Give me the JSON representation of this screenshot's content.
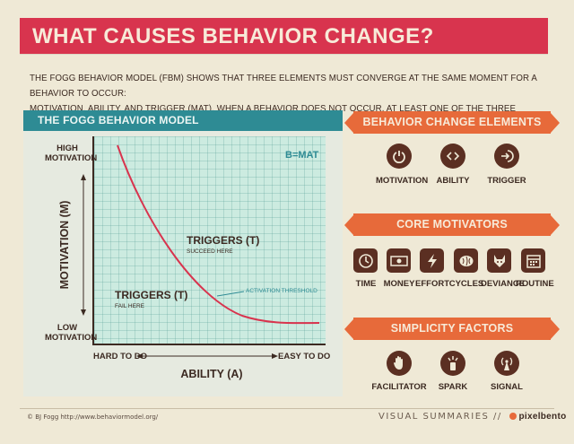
{
  "title": "WHAT CAUSES BEHAVIOR CHANGE?",
  "intro_line1": "THE FOGG BEHAVIOR MODEL (FBM) SHOWS THAT THREE ELEMENTS MUST CONVERGE AT THE SAME MOMENT FOR A BEHAVIOR TO OCCUR:",
  "intro_line2": "MOTIVATION, ABILITY, AND TRIGGER (MAT). WHEN A BEHAVIOR DOES NOT OCCUR, AT LEAST ONE OF THE THREE ELEMENTS IS MISSING.",
  "model": {
    "header": "THE FOGG BEHAVIOR MODEL",
    "formula": "B=MAT",
    "y_axis": "MOTIVATION (M)",
    "y_high": [
      "HIGH",
      "MOTIVATION"
    ],
    "y_low": [
      "LOW",
      "MOTIVATION"
    ],
    "x_axis": "ABILITY (A)",
    "x_low": "HARD TO DO",
    "x_high": "EASY TO DO",
    "triggers_succeed": "TRIGGERS (T)",
    "succeed_sub": "SUCCEED HERE",
    "triggers_fail": "TRIGGERS (T)",
    "fail_sub": "FAIL HERE",
    "threshold": "ACTIVATION THRESHOLD",
    "curve_color": "#d8344e"
  },
  "elements": {
    "header": "BEHAVIOR CHANGE ELEMENTS",
    "items": [
      {
        "label": "MOTIVATION",
        "icon": "power-icon"
      },
      {
        "label": "ABILITY",
        "icon": "code-icon"
      },
      {
        "label": "TRIGGER",
        "icon": "enter-icon"
      }
    ]
  },
  "motivators": {
    "header": "CORE MOTIVATORS",
    "items": [
      {
        "label": "TIME",
        "icon": "clock-icon"
      },
      {
        "label": "MONEY",
        "icon": "money-icon"
      },
      {
        "label": "EFFORT",
        "icon": "lightning-icon"
      },
      {
        "label": "CYCLES",
        "icon": "brain-icon"
      },
      {
        "label": "DEVIANCE",
        "icon": "devil-icon"
      },
      {
        "label": "ROUTINE",
        "icon": "calendar-icon"
      }
    ]
  },
  "simplicity": {
    "header": "SIMPLICITY FACTORS",
    "items": [
      {
        "label": "FACILITATOR",
        "icon": "hand-icon"
      },
      {
        "label": "SPARK",
        "icon": "spark-icon"
      },
      {
        "label": "SIGNAL",
        "icon": "signal-icon"
      }
    ]
  },
  "footer": {
    "credit": "© BJ Fogg http://www.behaviormodel.org/",
    "visual": "VISUAL SUMMARIES //",
    "brand": "pixelbento"
  },
  "colors": {
    "title_red": "#d8344e",
    "teal": "#2e8b94",
    "orange": "#e76a3a",
    "brown": "#5b2f22",
    "cream": "#efe9d6"
  }
}
